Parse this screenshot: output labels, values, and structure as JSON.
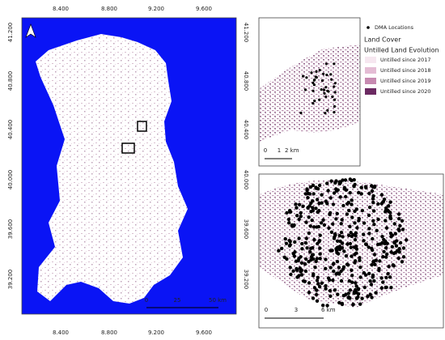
{
  "map": {
    "lon_labels": [
      "8.400",
      "8.800",
      "9.200",
      "9.600"
    ],
    "lat_labels": [
      "41.200",
      "40.800",
      "40.400",
      "40.000",
      "39.600",
      "39.200"
    ],
    "scale_main": [
      "0",
      "25",
      "50 km"
    ],
    "inset_top": {
      "scale": [
        "0",
        "1",
        "2 km"
      ]
    },
    "inset_bottom": {
      "scale": [
        "0",
        "3",
        "6 km"
      ]
    }
  },
  "legend": {
    "points": "DMA Locations",
    "land_cover": "Land Cover",
    "group": "Untilled Land Evolution",
    "items": [
      {
        "label": "Untilled since 2017",
        "color": "#f6e7f0"
      },
      {
        "label": "Untilled since 2018",
        "color": "#e4bcd4"
      },
      {
        "label": "Untilled since 2019",
        "color": "#c78ab1"
      },
      {
        "label": "Untilled since 2020",
        "color": "#6b2a62"
      }
    ]
  }
}
